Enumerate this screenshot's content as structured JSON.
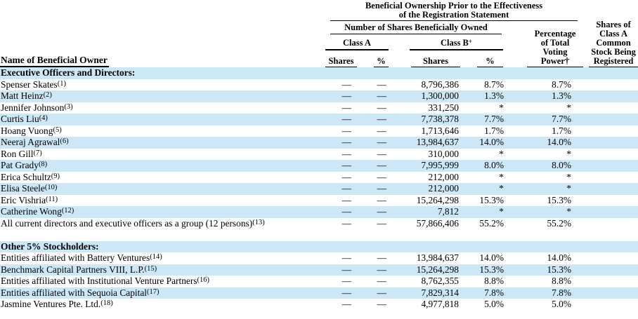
{
  "colors": {
    "row_highlight": "#cce8f7"
  },
  "header": {
    "group_title_lines": [
      "Beneficial Ownership Prior to the Effectiveness",
      "of the Registration Statement"
    ],
    "number_of_shares_label": "Number of Shares Beneficially Owned",
    "class_a_label": "Class A",
    "class_b_label": "Class B",
    "class_b_superscript": "+",
    "shares_label": "Shares",
    "percent_label": "%",
    "voting_power_lines": [
      "Percentage",
      "of Total",
      "Voting",
      "Power†"
    ],
    "registered_lines": [
      "Shares of",
      "Class A",
      "Common",
      "Stock Being",
      "Registered"
    ],
    "name_column_label": "Name of Beneficial Owner"
  },
  "sections": [
    {
      "title": "Executive Officers and Directors:",
      "rows": [
        {
          "name": "Spenser Skates",
          "fn": "(1)",
          "a_shares": "—",
          "a_pct": "—",
          "b_shares": "8,796,386",
          "b_pct": "8.7%",
          "voting": "8.7%",
          "registered": ""
        },
        {
          "name": "Matt Heinz",
          "fn": "(2)",
          "a_shares": "—",
          "a_pct": "—",
          "b_shares": "1,300,000",
          "b_pct": "1.3%",
          "voting": "1.3%",
          "registered": ""
        },
        {
          "name": "Jennifer Johnson",
          "fn": "(3)",
          "a_shares": "—",
          "a_pct": "—",
          "b_shares": "331,250",
          "b_pct": "*",
          "voting": "*",
          "registered": ""
        },
        {
          "name": "Curtis Liu",
          "fn": "(4)",
          "a_shares": "—",
          "a_pct": "—",
          "b_shares": "7,738,378",
          "b_pct": "7.7%",
          "voting": "7.7%",
          "registered": ""
        },
        {
          "name": "Hoang Vuong",
          "fn": "(5)",
          "a_shares": "—",
          "a_pct": "—",
          "b_shares": "1,713,646",
          "b_pct": "1.7%",
          "voting": "1.7%",
          "registered": ""
        },
        {
          "name": "Neeraj Agrawal",
          "fn": "(6)",
          "a_shares": "—",
          "a_pct": "—",
          "b_shares": "13,984,637",
          "b_pct": "14.0%",
          "voting": "14.0%",
          "registered": ""
        },
        {
          "name": "Ron Gill",
          "fn": "(7)",
          "a_shares": "—",
          "a_pct": "—",
          "b_shares": "310,000",
          "b_pct": "*",
          "voting": "*",
          "registered": ""
        },
        {
          "name": "Pat Grady",
          "fn": "(8)",
          "a_shares": "—",
          "a_pct": "—",
          "b_shares": "7,995,999",
          "b_pct": "8.0%",
          "voting": "8.0%",
          "registered": ""
        },
        {
          "name": "Erica Schultz",
          "fn": "(9)",
          "a_shares": "—",
          "a_pct": "—",
          "b_shares": "212,000",
          "b_pct": "*",
          "voting": "*",
          "registered": ""
        },
        {
          "name": "Elisa Steele",
          "fn": "(10)",
          "a_shares": "—",
          "a_pct": "—",
          "b_shares": "212,000",
          "b_pct": "*",
          "voting": "*",
          "registered": ""
        },
        {
          "name": "Eric Vishria",
          "fn": "(11)",
          "a_shares": "—",
          "a_pct": "—",
          "b_shares": "15,264,298",
          "b_pct": "15.3%",
          "voting": "15.3%",
          "registered": ""
        },
        {
          "name": "Catherine Wong",
          "fn": "(12)",
          "a_shares": "—",
          "a_pct": "—",
          "b_shares": "7,812",
          "b_pct": "*",
          "voting": "*",
          "registered": ""
        },
        {
          "name": "All current directors and executive officers as a group (12 persons)",
          "fn": "(13)",
          "a_shares": "—",
          "a_pct": "—",
          "b_shares": "57,866,406",
          "b_pct": "55.2%",
          "voting": "55.2%",
          "registered": ""
        }
      ]
    },
    {
      "title": "Other 5% Stockholders:",
      "rows": [
        {
          "name": "Entities affiliated with Battery Ventures",
          "fn": "(14)",
          "a_shares": "—",
          "a_pct": "—",
          "b_shares": "13,984,637",
          "b_pct": "14.0%",
          "voting": "14.0%",
          "registered": ""
        },
        {
          "name": "Benchmark Capital Partners VIII, L.P.",
          "fn": "(15)",
          "a_shares": "—",
          "a_pct": "—",
          "b_shares": "15,264,298",
          "b_pct": "15.3%",
          "voting": "15.3%",
          "registered": ""
        },
        {
          "name": "Entities affiliated with Institutional Venture Partners",
          "fn": "(16)",
          "a_shares": "—",
          "a_pct": "—",
          "b_shares": "8,762,355",
          "b_pct": "8.8%",
          "voting": "8.8%",
          "registered": ""
        },
        {
          "name": "Entities affiliated with Sequoia Capital",
          "fn": "(17)",
          "a_shares": "—",
          "a_pct": "—",
          "b_shares": "7,829,314",
          "b_pct": "7.8%",
          "voting": "7.8%",
          "registered": ""
        },
        {
          "name": "Jasmine Ventures Pte. Ltd.",
          "fn": "(18)",
          "a_shares": "—",
          "a_pct": "—",
          "b_shares": "4,977,818",
          "b_pct": "5.0%",
          "voting": "5.0%",
          "registered": ""
        }
      ]
    }
  ]
}
